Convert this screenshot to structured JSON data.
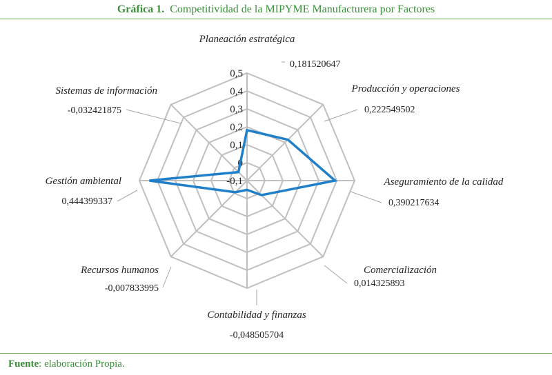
{
  "header": {
    "number": "Gráfica 1.",
    "title": "Competitividad de la MIPYME Manufacturera por Factores"
  },
  "footer": {
    "label": "Fuente",
    "text": ": elaboración Propia."
  },
  "chart_data": {
    "type": "radar",
    "categories": [
      "Planeación estratégica",
      "Producción y operaciones",
      "Aseguramiento de la calidad",
      "Comercialización",
      "Contabilidad y finanzas",
      "Recursos humanos",
      "Gestión ambiental",
      "Sistemas de información"
    ],
    "values": [
      0.181520647,
      0.222549502,
      0.390217634,
      0.014325893,
      -0.048505704,
      -0.007833995,
      0.444399337,
      -0.032421875
    ],
    "value_labels": [
      "0,181520647",
      "0,222549502",
      "0,390217634",
      "0,014325893",
      "-0,048505704",
      "-0,007833995",
      "0,444399337",
      "-0,032421875"
    ],
    "rlim": [
      -0.1,
      0.5
    ],
    "ticks": [
      -0.1,
      0,
      0.1,
      0.2,
      0.3,
      0.4,
      0.5
    ],
    "tick_labels": [
      "-0,1",
      "0",
      "0,1",
      "0,2",
      "0,3",
      "0,4",
      "0,5"
    ],
    "series_color": "#1f7fc9",
    "grid_color": "#bfbfbf",
    "grid": true
  }
}
